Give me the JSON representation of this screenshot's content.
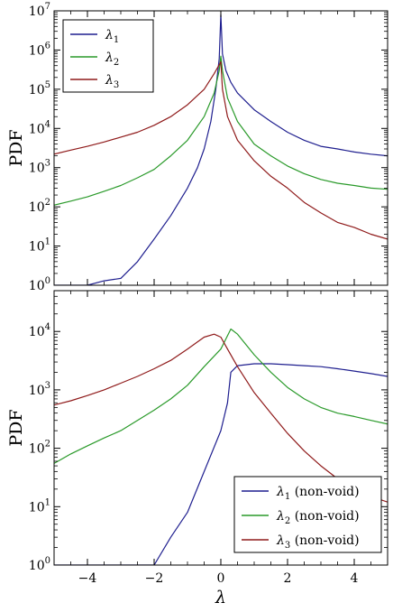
{
  "colors": {
    "lambda1": "#1f1f8f",
    "lambda2": "#2a9a2a",
    "lambda3": "#8f1a1a"
  },
  "chart_data": [
    {
      "type": "line",
      "panel": "top",
      "xlabel": "",
      "ylabel": "PDF",
      "xlim": [
        -5,
        5
      ],
      "ylim": [
        1,
        10000000
      ],
      "yscale": "log",
      "x_ticks": [
        "−4",
        "−2",
        "0",
        "2",
        "4"
      ],
      "x_tick_values": [
        -4,
        -2,
        0,
        2,
        4
      ],
      "y_tick_values": [
        1,
        10,
        100,
        1000,
        10000,
        100000,
        1000000,
        10000000
      ],
      "y_ticks": [
        {
          "base": "10",
          "exp": "0"
        },
        {
          "base": "10",
          "exp": "1"
        },
        {
          "base": "10",
          "exp": "2"
        },
        {
          "base": "10",
          "exp": "3"
        },
        {
          "base": "10",
          "exp": "4"
        },
        {
          "base": "10",
          "exp": "5"
        },
        {
          "base": "10",
          "exp": "6"
        },
        {
          "base": "10",
          "exp": "7"
        }
      ],
      "legend_position": "top-left",
      "grid": false,
      "series": [
        {
          "name": "λ1",
          "name_base": "λ",
          "name_sub": "1",
          "name_suffix": "",
          "color": "#1f1f8f",
          "x": [
            -5.0,
            -4.5,
            -4.0,
            -3.5,
            -3.0,
            -2.5,
            -2.0,
            -1.5,
            -1.0,
            -0.7,
            -0.5,
            -0.3,
            -0.15,
            -0.05,
            0.0,
            0.05,
            0.15,
            0.3,
            0.5,
            1.0,
            1.5,
            2.0,
            2.5,
            3.0,
            3.5,
            4.0,
            4.5,
            5.0
          ],
          "y": [
            1,
            1,
            1,
            1.3,
            1.5,
            4,
            15,
            60,
            300,
            1000,
            3000,
            15000,
            100000,
            600000,
            8000000,
            800000,
            300000,
            150000,
            80000,
            30000,
            15000,
            8000,
            5000,
            3500,
            3000,
            2500,
            2200,
            2000
          ]
        },
        {
          "name": "λ2",
          "name_base": "λ",
          "name_sub": "2",
          "name_suffix": "",
          "color": "#2a9a2a",
          "x": [
            -5.0,
            -4.5,
            -4.0,
            -3.5,
            -3.0,
            -2.5,
            -2.0,
            -1.5,
            -1.0,
            -0.5,
            -0.2,
            -0.05,
            0.0,
            0.05,
            0.2,
            0.5,
            1.0,
            1.5,
            2.0,
            2.5,
            3.0,
            3.5,
            4.0,
            4.5,
            5.0
          ],
          "y": [
            110,
            140,
            180,
            250,
            350,
            550,
            900,
            2000,
            5000,
            20000,
            80000,
            300000,
            700000,
            300000,
            60000,
            15000,
            4000,
            2000,
            1100,
            700,
            500,
            400,
            350,
            300,
            280
          ]
        },
        {
          "name": "λ3",
          "name_base": "λ",
          "name_sub": "3",
          "name_suffix": "",
          "color": "#8f1a1a",
          "x": [
            -5.0,
            -4.5,
            -4.0,
            -3.5,
            -3.0,
            -2.5,
            -2.0,
            -1.5,
            -1.0,
            -0.5,
            -0.2,
            0.0,
            0.05,
            0.2,
            0.5,
            1.0,
            1.5,
            2.0,
            2.5,
            3.0,
            3.5,
            4.0,
            4.5,
            5.0
          ],
          "y": [
            2200,
            2800,
            3500,
            4500,
            6000,
            8000,
            12000,
            20000,
            40000,
            100000,
            250000,
            500000,
            100000,
            20000,
            5000,
            1500,
            600,
            300,
            130,
            70,
            40,
            30,
            20,
            15
          ]
        }
      ]
    },
    {
      "type": "line",
      "panel": "bottom",
      "xlabel": "λ",
      "ylabel": "PDF",
      "xlim": [
        -5,
        5
      ],
      "ylim": [
        1,
        50000
      ],
      "yscale": "log",
      "x_ticks": [
        "−4",
        "−2",
        "0",
        "2",
        "4"
      ],
      "x_tick_values": [
        -4,
        -2,
        0,
        2,
        4
      ],
      "y_tick_values": [
        1,
        10,
        100,
        1000,
        10000
      ],
      "y_ticks": [
        {
          "base": "10",
          "exp": "0"
        },
        {
          "base": "10",
          "exp": "1"
        },
        {
          "base": "10",
          "exp": "2"
        },
        {
          "base": "10",
          "exp": "3"
        },
        {
          "base": "10",
          "exp": "4"
        }
      ],
      "legend_position": "bottom-right",
      "grid": false,
      "series": [
        {
          "name": "λ1 (non-void)",
          "name_base": "λ",
          "name_sub": "1",
          "name_suffix": " (non-void)",
          "color": "#1f1f8f",
          "x": [
            -5.0,
            -4.0,
            -3.0,
            -2.5,
            -2.0,
            -1.5,
            -1.0,
            -0.5,
            0.0,
            0.2,
            0.3,
            0.5,
            1.0,
            1.5,
            2.0,
            2.5,
            3.0,
            3.5,
            4.0,
            4.5,
            5.0
          ],
          "y": [
            1,
            1,
            1,
            1,
            1,
            3,
            8,
            40,
            200,
            600,
            2000,
            2600,
            2800,
            2800,
            2700,
            2600,
            2500,
            2300,
            2100,
            1900,
            1700
          ]
        },
        {
          "name": "λ2 (non-void)",
          "name_base": "λ",
          "name_sub": "2",
          "name_suffix": " (non-void)",
          "color": "#2a9a2a",
          "x": [
            -5.0,
            -4.5,
            -4.0,
            -3.5,
            -3.0,
            -2.5,
            -2.0,
            -1.5,
            -1.0,
            -0.5,
            0.0,
            0.3,
            0.5,
            1.0,
            1.5,
            2.0,
            2.5,
            3.0,
            3.5,
            4.0,
            4.5,
            5.0
          ],
          "y": [
            55,
            80,
            110,
            150,
            200,
            300,
            450,
            700,
            1200,
            2500,
            5000,
            11000,
            9000,
            4000,
            2000,
            1100,
            700,
            500,
            400,
            350,
            300,
            260
          ]
        },
        {
          "name": "λ3 (non-void)",
          "name_base": "λ",
          "name_sub": "3",
          "name_suffix": " (non-void)",
          "color": "#8f1a1a",
          "x": [
            -5.0,
            -4.5,
            -4.0,
            -3.5,
            -3.0,
            -2.5,
            -2.0,
            -1.5,
            -1.0,
            -0.5,
            -0.2,
            0.0,
            0.2,
            0.5,
            1.0,
            1.5,
            2.0,
            2.5,
            3.0,
            3.5,
            4.0,
            4.5,
            5.0
          ],
          "y": [
            550,
            650,
            800,
            1000,
            1300,
            1700,
            2300,
            3200,
            5000,
            8000,
            9000,
            8000,
            5000,
            2500,
            900,
            400,
            180,
            90,
            50,
            30,
            20,
            15,
            12
          ]
        }
      ]
    }
  ]
}
